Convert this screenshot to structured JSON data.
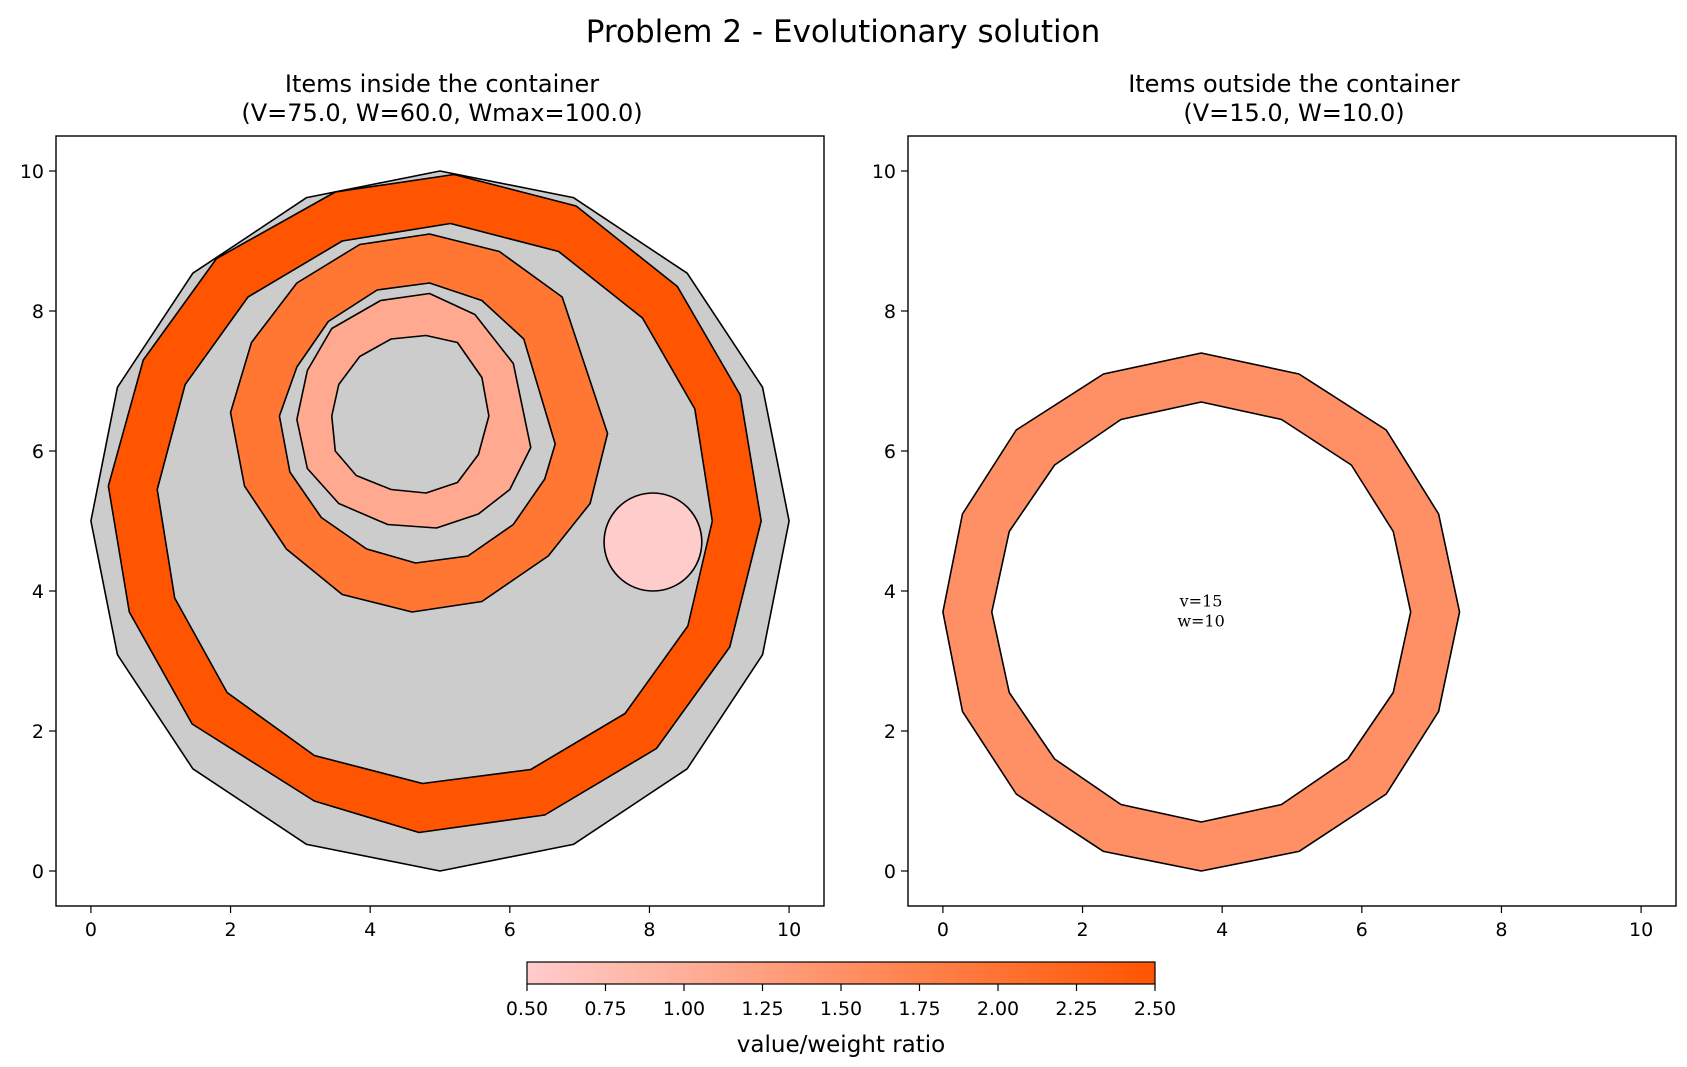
{
  "figure": {
    "title": "Problem 2 - Evolutionary solution"
  },
  "chart_data": [
    {
      "type": "polygon-packing",
      "title": "Items inside the container",
      "subtitle": "(V=75.0, W=60.0, Wmax=100.0)",
      "xlim": [
        -0.5,
        10.5
      ],
      "ylim": [
        -0.5,
        10.5
      ],
      "xticks": [
        0,
        2,
        4,
        6,
        8,
        10
      ],
      "yticks": [
        0,
        2,
        4,
        6,
        8,
        10
      ],
      "grid": false,
      "container": {
        "color": "#cccccc",
        "vertices": [
          [
            10,
            5
          ],
          [
            9.62,
            6.91
          ],
          [
            8.54,
            8.54
          ],
          [
            6.91,
            9.62
          ],
          [
            5,
            10
          ],
          [
            3.09,
            9.62
          ],
          [
            1.46,
            8.54
          ],
          [
            0.38,
            6.91
          ],
          [
            0,
            5
          ],
          [
            0.38,
            3.09
          ],
          [
            1.46,
            1.46
          ],
          [
            3.09,
            0.38
          ],
          [
            5,
            0
          ],
          [
            6.91,
            0.38
          ],
          [
            8.54,
            1.46
          ],
          [
            9.62,
            3.09
          ]
        ]
      },
      "items": [
        {
          "ratio": 2.5,
          "color": "#ff5500",
          "outer": [
            [
              9.6,
              5
            ],
            [
              9.3,
              6.8
            ],
            [
              8.4,
              8.35
            ],
            [
              6.95,
              9.5
            ],
            [
              5.2,
              9.95
            ],
            [
              3.5,
              9.7
            ],
            [
              1.8,
              8.75
            ],
            [
              0.75,
              7.3
            ],
            [
              0.25,
              5.5
            ],
            [
              0.55,
              3.7
            ],
            [
              1.45,
              2.1
            ],
            [
              3.2,
              1
            ],
            [
              4.7,
              0.55
            ],
            [
              6.5,
              0.8
            ],
            [
              8.1,
              1.75
            ],
            [
              9.15,
              3.2
            ]
          ],
          "inner": [
            [
              8.9,
              5
            ],
            [
              8.65,
              6.6
            ],
            [
              7.9,
              7.9
            ],
            [
              6.7,
              8.85
            ],
            [
              5.15,
              9.25
            ],
            [
              3.6,
              9.0
            ],
            [
              2.25,
              8.2
            ],
            [
              1.35,
              6.95
            ],
            [
              0.95,
              5.45
            ],
            [
              1.2,
              3.9
            ],
            [
              1.95,
              2.55
            ],
            [
              3.2,
              1.65
            ],
            [
              4.75,
              1.25
            ],
            [
              6.3,
              1.45
            ],
            [
              7.65,
              2.25
            ],
            [
              8.55,
              3.5
            ]
          ]
        },
        {
          "ratio": 2.0,
          "color": "#ff7733",
          "outer": [
            [
              7.4,
              6.25
            ],
            [
              6.75,
              8.2
            ],
            [
              5.85,
              8.85
            ],
            [
              4.85,
              9.1
            ],
            [
              3.85,
              8.95
            ],
            [
              2.95,
              8.4
            ],
            [
              2.3,
              7.55
            ],
            [
              2.0,
              6.55
            ],
            [
              2.2,
              5.5
            ],
            [
              2.8,
              4.6
            ],
            [
              3.6,
              3.95
            ],
            [
              4.6,
              3.7
            ],
            [
              5.6,
              3.85
            ],
            [
              6.55,
              4.5
            ],
            [
              7.15,
              5.25
            ]
          ],
          "inner": [
            [
              6.65,
              6.1
            ],
            [
              6.2,
              7.6
            ],
            [
              5.6,
              8.15
            ],
            [
              4.85,
              8.4
            ],
            [
              4.1,
              8.3
            ],
            [
              3.4,
              7.85
            ],
            [
              2.95,
              7.2
            ],
            [
              2.7,
              6.5
            ],
            [
              2.85,
              5.7
            ],
            [
              3.3,
              5.05
            ],
            [
              3.95,
              4.6
            ],
            [
              4.65,
              4.4
            ],
            [
              5.4,
              4.5
            ],
            [
              6.05,
              4.95
            ],
            [
              6.5,
              5.6
            ]
          ]
        },
        {
          "ratio": 1.0,
          "color": "#ffaa90",
          "outer": [
            [
              6.3,
              6.05
            ],
            [
              6.05,
              7.25
            ],
            [
              5.5,
              7.95
            ],
            [
              4.85,
              8.25
            ],
            [
              4.15,
              8.15
            ],
            [
              3.45,
              7.75
            ],
            [
              3.1,
              7.15
            ],
            [
              2.95,
              6.45
            ],
            [
              3.1,
              5.75
            ],
            [
              3.55,
              5.25
            ],
            [
              4.25,
              4.95
            ],
            [
              4.95,
              4.9
            ],
            [
              5.55,
              5.1
            ],
            [
              6.0,
              5.45
            ]
          ],
          "inner": [
            [
              5.7,
              6.5
            ],
            [
              5.6,
              7.05
            ],
            [
              5.25,
              7.55
            ],
            [
              4.8,
              7.65
            ],
            [
              4.3,
              7.6
            ],
            [
              3.85,
              7.35
            ],
            [
              3.55,
              6.95
            ],
            [
              3.45,
              6.5
            ],
            [
              3.5,
              6.0
            ],
            [
              3.8,
              5.65
            ],
            [
              4.3,
              5.45
            ],
            [
              4.8,
              5.4
            ],
            [
              5.25,
              5.55
            ],
            [
              5.55,
              5.95
            ]
          ]
        },
        {
          "ratio": 0.5,
          "color": "#ffcccc",
          "circle": {
            "cx": 8.05,
            "cy": 4.7,
            "r": 0.7
          }
        }
      ]
    },
    {
      "type": "polygon-packing",
      "title": "Items outside the container",
      "subtitle": "(V=15.0, W=10.0)",
      "xlim": [
        -0.5,
        10.5
      ],
      "ylim": [
        -0.5,
        10.5
      ],
      "xticks": [
        0,
        2,
        4,
        6,
        8,
        10
      ],
      "yticks": [
        0,
        2,
        4,
        6,
        8,
        10
      ],
      "grid": false,
      "items": [
        {
          "ratio": 1.5,
          "color": "#ff9066",
          "outer": [
            [
              7.4,
              3.7
            ],
            [
              7.1,
              5.1
            ],
            [
              6.35,
              6.3
            ],
            [
              5.1,
              7.1
            ],
            [
              3.7,
              7.4
            ],
            [
              2.3,
              7.1
            ],
            [
              1.05,
              6.3
            ],
            [
              0.28,
              5.1
            ],
            [
              0,
              3.7
            ],
            [
              0.28,
              2.28
            ],
            [
              1.05,
              1.1
            ],
            [
              2.3,
              0.28
            ],
            [
              3.7,
              0
            ],
            [
              5.1,
              0.28
            ],
            [
              6.35,
              1.1
            ],
            [
              7.1,
              2.28
            ]
          ],
          "inner": [
            [
              6.7,
              3.7
            ],
            [
              6.45,
              4.85
            ],
            [
              5.85,
              5.8
            ],
            [
              4.85,
              6.45
            ],
            [
              3.7,
              6.7
            ],
            [
              2.55,
              6.45
            ],
            [
              1.6,
              5.8
            ],
            [
              0.95,
              4.85
            ],
            [
              0.7,
              3.7
            ],
            [
              0.95,
              2.55
            ],
            [
              1.6,
              1.6
            ],
            [
              2.55,
              0.95
            ],
            [
              3.7,
              0.7
            ],
            [
              4.85,
              0.95
            ],
            [
              5.8,
              1.6
            ],
            [
              6.45,
              2.55
            ]
          ],
          "label": [
            "v=15",
            "w=10"
          ]
        }
      ]
    }
  ],
  "colorbar": {
    "label": "value/weight ratio",
    "min": 0.5,
    "max": 2.5,
    "color_min": "#ffcccc",
    "color_max": "#ff5500",
    "ticks": [
      "0.50",
      "0.75",
      "1.00",
      "1.25",
      "1.50",
      "1.75",
      "2.00",
      "2.25",
      "2.50"
    ]
  }
}
